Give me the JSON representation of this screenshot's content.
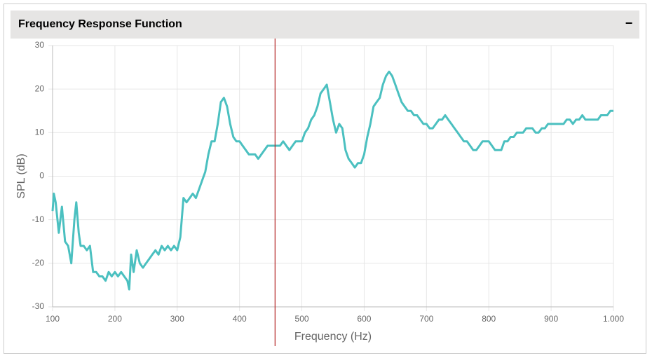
{
  "panel": {
    "title": "Frequency Response Function",
    "toggle": "−"
  },
  "chart_data": {
    "type": "line",
    "x_label": "Frequency (Hz)",
    "y_label": "SPL (dB)",
    "xlim": [
      100,
      1000
    ],
    "ylim": [
      -30,
      30
    ],
    "xticks": [
      100,
      200,
      300,
      400,
      500,
      600,
      700,
      800,
      900,
      {
        "value": 1000,
        "label": "1.000"
      }
    ],
    "yticks": [
      -30,
      -20,
      -10,
      0,
      10,
      20,
      30
    ],
    "grid": true,
    "marker_x": 457,
    "marker_color": "#b22222",
    "series": [
      {
        "name": "SPL",
        "color": "#4bc0c0",
        "x": [
          100,
          102,
          105,
          110,
          115,
          120,
          125,
          130,
          135,
          138,
          142,
          145,
          150,
          155,
          160,
          165,
          170,
          175,
          180,
          185,
          190,
          195,
          200,
          205,
          210,
          215,
          220,
          223,
          226,
          230,
          235,
          240,
          245,
          250,
          255,
          260,
          265,
          270,
          275,
          280,
          285,
          290,
          295,
          300,
          305,
          310,
          315,
          320,
          325,
          330,
          335,
          340,
          345,
          350,
          355,
          360,
          365,
          370,
          375,
          380,
          385,
          390,
          395,
          400,
          405,
          410,
          415,
          420,
          425,
          430,
          435,
          440,
          445,
          450,
          455,
          460,
          465,
          470,
          475,
          480,
          485,
          490,
          495,
          500,
          505,
          510,
          515,
          520,
          525,
          530,
          535,
          540,
          545,
          550,
          555,
          560,
          565,
          570,
          575,
          580,
          585,
          590,
          595,
          600,
          605,
          610,
          615,
          620,
          625,
          630,
          635,
          640,
          645,
          650,
          655,
          660,
          665,
          670,
          675,
          680,
          685,
          690,
          695,
          700,
          705,
          710,
          715,
          720,
          725,
          730,
          735,
          740,
          745,
          750,
          755,
          760,
          765,
          770,
          775,
          780,
          785,
          790,
          795,
          800,
          805,
          810,
          815,
          820,
          825,
          830,
          835,
          840,
          845,
          850,
          855,
          860,
          865,
          870,
          875,
          880,
          885,
          890,
          895,
          900,
          905,
          910,
          915,
          920,
          925,
          930,
          935,
          940,
          945,
          950,
          955,
          960,
          965,
          970,
          975,
          980,
          985,
          990,
          995,
          1000
        ],
        "values": [
          -8,
          -4,
          -6,
          -13,
          -7,
          -15,
          -16,
          -20,
          -10,
          -6,
          -13,
          -16,
          -16,
          -17,
          -16,
          -22,
          -22,
          -23,
          -23,
          -24,
          -22,
          -23,
          -22,
          -23,
          -22,
          -23,
          -24,
          -26,
          -18,
          -22,
          -17,
          -20,
          -21,
          -20,
          -19,
          -18,
          -17,
          -18,
          -16,
          -17,
          -16,
          -17,
          -16,
          -17,
          -14,
          -5,
          -6,
          -5,
          -4,
          -5,
          -3,
          -1,
          1,
          5,
          8,
          8,
          12,
          17,
          18,
          16,
          12,
          9,
          8,
          8,
          7,
          6,
          5,
          5,
          5,
          4,
          5,
          6,
          7,
          7,
          7,
          7,
          7,
          8,
          7,
          6,
          7,
          8,
          8,
          8,
          10,
          11,
          13,
          14,
          16,
          19,
          20,
          21,
          17,
          13,
          10,
          12,
          11,
          6,
          4,
          3,
          2,
          3,
          3,
          5,
          9,
          12,
          16,
          17,
          18,
          21,
          23,
          24,
          23,
          21,
          19,
          17,
          16,
          15,
          15,
          14,
          14,
          13,
          12,
          12,
          11,
          11,
          12,
          13,
          13,
          14,
          13,
          12,
          11,
          10,
          9,
          8,
          8,
          7,
          6,
          6,
          7,
          8,
          8,
          8,
          7,
          6,
          6,
          6,
          8,
          8,
          9,
          9,
          10,
          10,
          10,
          11,
          11,
          11,
          10,
          10,
          11,
          11,
          12,
          12,
          12,
          12,
          12,
          12,
          13,
          13,
          12,
          13,
          13,
          14,
          13,
          13,
          13,
          13,
          13,
          14,
          14,
          14,
          15,
          15
        ]
      }
    ]
  }
}
